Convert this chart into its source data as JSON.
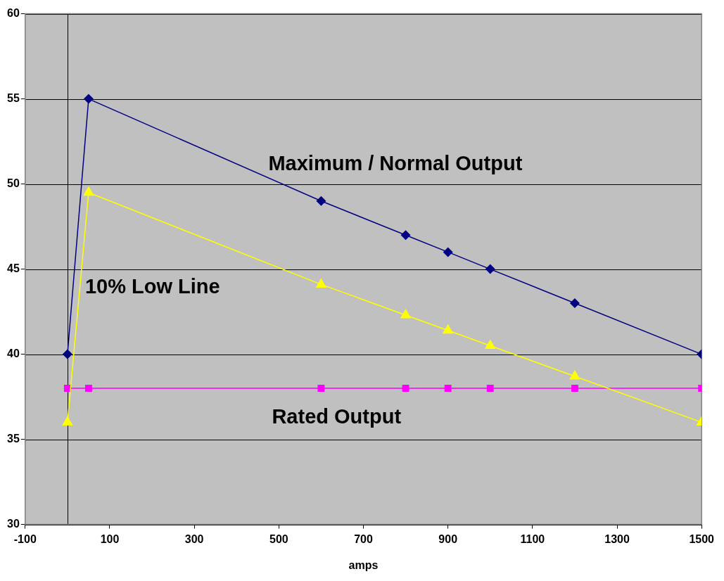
{
  "chart_data": {
    "type": "line",
    "xlabel": "amps",
    "x": [
      0,
      50,
      600,
      800,
      900,
      1000,
      1200,
      1500
    ],
    "series": [
      {
        "name": "Maximum / Normal Output",
        "color": "#000080",
        "marker": "diamond",
        "values": [
          40,
          55,
          49,
          47,
          46,
          45,
          43,
          40
        ]
      },
      {
        "name": "10% Low Line",
        "color": "#ffff00",
        "marker": "triangle",
        "values": [
          36,
          49.5,
          44.1,
          42.3,
          41.4,
          40.5,
          38.7,
          36
        ]
      },
      {
        "name": "Rated Output",
        "color": "#ff00ff",
        "marker": "square",
        "values": [
          38,
          38,
          38,
          38,
          38,
          38,
          38,
          38
        ]
      }
    ],
    "xlim": [
      -100,
      1500
    ],
    "xticks": [
      -100,
      100,
      300,
      500,
      700,
      900,
      1100,
      1300,
      1500
    ],
    "ylim": [
      30,
      60
    ],
    "yticks": [
      30,
      35,
      40,
      45,
      50,
      55,
      60
    ],
    "ref_lines": [
      {
        "axis": "x",
        "value": 0,
        "color": "#000000"
      }
    ],
    "grid": "y",
    "legend": false
  }
}
